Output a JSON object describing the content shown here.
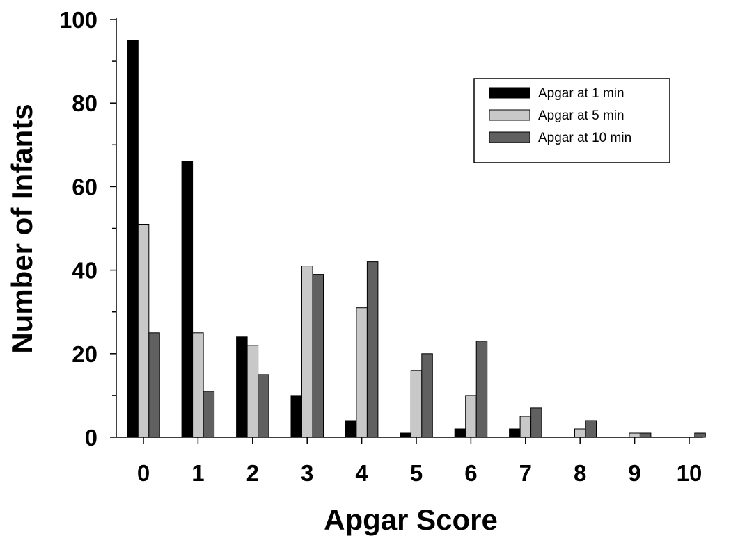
{
  "chart_data": {
    "type": "bar",
    "xlabel": "Apgar Score",
    "ylabel": "Number of Infants",
    "categories": [
      "0",
      "1",
      "2",
      "3",
      "4",
      "5",
      "6",
      "7",
      "8",
      "9",
      "10"
    ],
    "ylim": [
      0,
      100
    ],
    "yticks": [
      "0",
      "20",
      "40",
      "60",
      "80",
      "100"
    ],
    "grid": false,
    "legend_position": "top-right",
    "series": [
      {
        "name": "Apgar at 1 min",
        "color": "#000000",
        "values": [
          95,
          66,
          24,
          10,
          4,
          1,
          2,
          2,
          0,
          0,
          0
        ]
      },
      {
        "name": "Apgar at 5 min",
        "color": "#c8c8c8",
        "values": [
          51,
          25,
          22,
          41,
          31,
          16,
          10,
          5,
          2,
          1,
          0
        ]
      },
      {
        "name": "Apgar at 10 min",
        "color": "#606060",
        "values": [
          25,
          11,
          15,
          39,
          42,
          20,
          23,
          7,
          4,
          1,
          1
        ]
      }
    ]
  }
}
